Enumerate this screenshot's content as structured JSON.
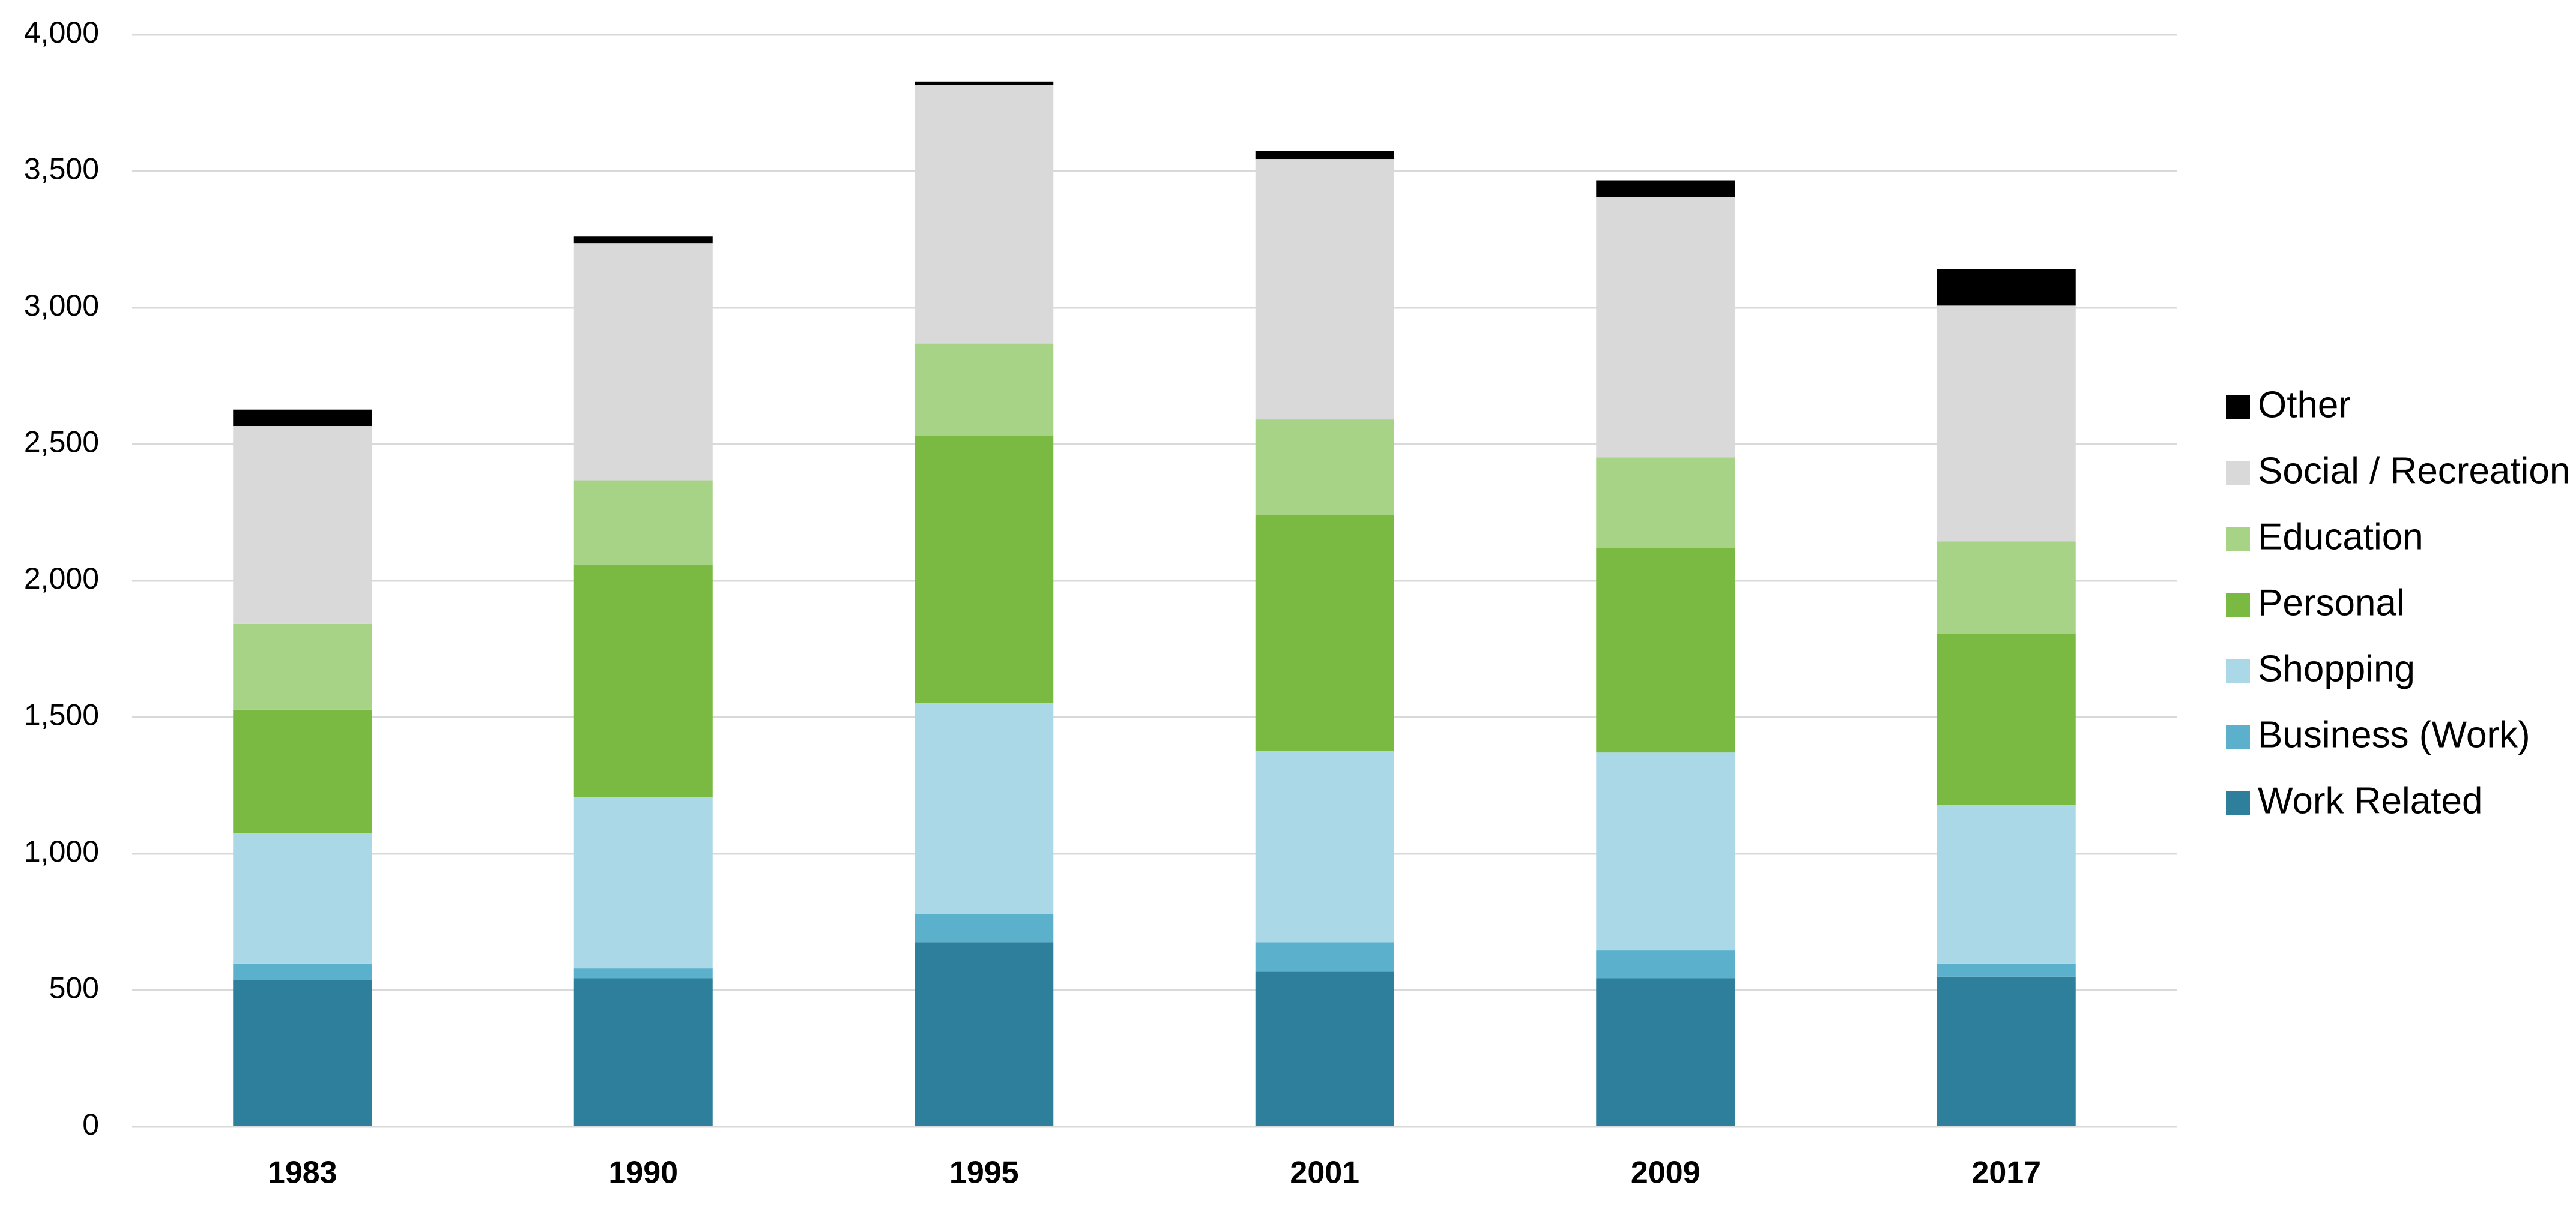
{
  "chart_data": {
    "type": "stacked_bar",
    "categories": [
      "1983",
      "1990",
      "1995",
      "2001",
      "2009",
      "2017"
    ],
    "series": [
      {
        "name": "Work Related",
        "color": "#2e7f9b",
        "values": [
          538,
          544,
          676,
          568,
          544,
          550
        ]
      },
      {
        "name": "Business (Work)",
        "color": "#5bb1cc",
        "values": [
          60,
          36,
          103,
          108,
          102,
          48
        ]
      },
      {
        "name": "Shopping",
        "color": "#aad8e6",
        "values": [
          477,
          628,
          773,
          701,
          725,
          580
        ]
      },
      {
        "name": "Personal",
        "color": "#7aba42",
        "values": [
          453,
          852,
          979,
          864,
          749,
          628
        ]
      },
      {
        "name": "Education",
        "color": "#a6d385",
        "values": [
          314,
          308,
          338,
          350,
          332,
          338
        ]
      },
      {
        "name": "Social / Recreation",
        "color": "#d9d9d9",
        "values": [
          725,
          869,
          948,
          954,
          954,
          864
        ]
      },
      {
        "name": "Other",
        "color": "#000000",
        "values": [
          60,
          24,
          12,
          30,
          61,
          133
        ]
      }
    ],
    "ylim": [
      0,
      4000
    ],
    "yticks": [
      0,
      500,
      {
        "value": 1000,
        "label": "1,000"
      },
      {
        "value": 1500,
        "label": "1,500"
      },
      {
        "value": 2000,
        "label": "2,000"
      },
      {
        "value": 2500,
        "label": "2,500"
      },
      {
        "value": 3000,
        "label": "3,000"
      },
      {
        "value": 3500,
        "label": "3,500"
      },
      {
        "value": 4000,
        "label": "4,000"
      }
    ],
    "grid": true,
    "legend": "right"
  }
}
